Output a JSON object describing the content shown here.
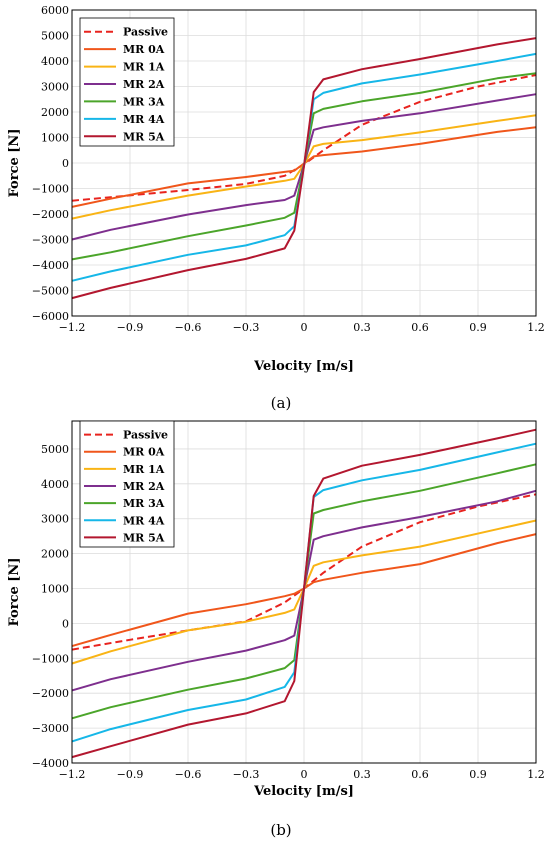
{
  "chart_data": [
    {
      "type": "line",
      "caption": "(a)",
      "xlabel": "Velocity [m/s]",
      "ylabel": "Force [N]",
      "xlim": [
        -1.2,
        1.2
      ],
      "ylim": [
        -6000,
        6000
      ],
      "xticks": [
        "−1.2",
        "−0.9",
        "−0.6",
        "−0.3",
        "0",
        "0.3",
        "0.6",
        "0.9",
        "1.2"
      ],
      "xtick_values": [
        -1.2,
        -0.9,
        -0.6,
        -0.3,
        0,
        0.3,
        0.6,
        0.9,
        1.2
      ],
      "yticks": [
        "−6000",
        "−5000",
        "−4000",
        "−3000",
        "−2000",
        "−1000",
        "0",
        "1000",
        "2000",
        "3000",
        "4000",
        "5000",
        "6000"
      ],
      "ytick_values": [
        -6000,
        -5000,
        -4000,
        -3000,
        -2000,
        -1000,
        0,
        1000,
        2000,
        3000,
        4000,
        5000,
        6000
      ],
      "grid": true,
      "legend_position": "top-left",
      "series": [
        {
          "name": "Passive",
          "color": "#e8231e",
          "dashed": true,
          "x": [
            -1.2,
            -0.9,
            -0.6,
            -0.3,
            -0.1,
            0,
            0.1,
            0.3,
            0.6,
            0.9,
            1.2
          ],
          "y": [
            -1480,
            -1270,
            -1060,
            -820,
            -500,
            -50,
            500,
            1500,
            2400,
            3000,
            3450
          ]
        },
        {
          "name": "MR 0A",
          "color": "#f0561b",
          "dashed": false,
          "x": [
            -1.2,
            -1.0,
            -0.6,
            -0.3,
            -0.1,
            -0.05,
            0,
            0.05,
            0.1,
            0.3,
            0.6,
            1.0,
            1.2
          ],
          "y": [
            -1720,
            -1400,
            -800,
            -550,
            -350,
            -300,
            -20,
            260,
            310,
            450,
            750,
            1220,
            1400
          ]
        },
        {
          "name": "MR 1A",
          "color": "#f9b415",
          "dashed": false,
          "x": [
            -1.2,
            -1.0,
            -0.6,
            -0.3,
            -0.1,
            -0.05,
            0,
            0.05,
            0.1,
            0.3,
            0.6,
            1.0,
            1.2
          ],
          "y": [
            -2180,
            -1850,
            -1280,
            -920,
            -700,
            -620,
            -60,
            650,
            750,
            900,
            1200,
            1650,
            1870
          ]
        },
        {
          "name": "MR 2A",
          "color": "#7e2f8e",
          "dashed": false,
          "x": [
            -1.2,
            -1.0,
            -0.6,
            -0.3,
            -0.1,
            -0.05,
            0,
            0.05,
            0.1,
            0.3,
            0.6,
            1.0,
            1.2
          ],
          "y": [
            -3000,
            -2620,
            -2020,
            -1650,
            -1450,
            -1280,
            -60,
            1300,
            1400,
            1650,
            1950,
            2450,
            2700
          ]
        },
        {
          "name": "MR 3A",
          "color": "#4ba52a",
          "dashed": false,
          "x": [
            -1.2,
            -1.0,
            -0.6,
            -0.3,
            -0.1,
            -0.05,
            0,
            0.05,
            0.1,
            0.3,
            0.6,
            1.0,
            1.2
          ],
          "y": [
            -3780,
            -3500,
            -2870,
            -2450,
            -2150,
            -1950,
            -80,
            1950,
            2120,
            2420,
            2750,
            3320,
            3520
          ]
        },
        {
          "name": "MR 4A",
          "color": "#16b7e8",
          "dashed": false,
          "x": [
            -1.2,
            -1.0,
            -0.6,
            -0.3,
            -0.1,
            -0.05,
            0,
            0.05,
            0.1,
            0.3,
            0.6,
            1.0,
            1.2
          ],
          "y": [
            -4620,
            -4250,
            -3600,
            -3230,
            -2830,
            -2480,
            -100,
            2500,
            2750,
            3120,
            3470,
            4000,
            4280
          ]
        },
        {
          "name": "MR 5A",
          "color": "#b3172f",
          "dashed": false,
          "x": [
            -1.2,
            -1.0,
            -0.6,
            -0.3,
            -0.1,
            -0.05,
            0,
            0.05,
            0.1,
            0.3,
            0.6,
            1.0,
            1.2
          ],
          "y": [
            -5300,
            -4900,
            -4200,
            -3760,
            -3350,
            -2650,
            -120,
            2780,
            3280,
            3680,
            4080,
            4650,
            4900
          ]
        }
      ]
    },
    {
      "type": "line",
      "caption": "(b)",
      "xlabel": "Velocity [m/s]",
      "ylabel": "Force [N]",
      "xlim": [
        -1.2,
        1.2
      ],
      "ylim": [
        -4000,
        5800
      ],
      "xticks": [
        "−1.2",
        "−0.9",
        "−0.6",
        "−0.3",
        "0",
        "0.3",
        "0.6",
        "0.9",
        "1.2"
      ],
      "xtick_values": [
        -1.2,
        -0.9,
        -0.6,
        -0.3,
        0,
        0.3,
        0.6,
        0.9,
        1.2
      ],
      "yticks": [
        "−4000",
        "−3000",
        "−2000",
        "−1000",
        "0",
        "1000",
        "2000",
        "3000",
        "4000",
        "5000"
      ],
      "ytick_values": [
        -4000,
        -3000,
        -2000,
        -1000,
        0,
        1000,
        2000,
        3000,
        4000,
        5000
      ],
      "grid": true,
      "legend_position": "top-left",
      "series": [
        {
          "name": "Passive",
          "color": "#e8231e",
          "dashed": true,
          "x": [
            -1.2,
            -0.9,
            -0.6,
            -0.3,
            -0.1,
            0,
            0.1,
            0.3,
            0.6,
            0.9,
            1.2
          ],
          "y": [
            -750,
            -470,
            -200,
            60,
            600,
            1000,
            1450,
            2200,
            2900,
            3350,
            3700
          ]
        },
        {
          "name": "MR 0A",
          "color": "#f0561b",
          "dashed": false,
          "x": [
            -1.2,
            -1.0,
            -0.6,
            -0.3,
            -0.1,
            -0.05,
            0,
            0.05,
            0.1,
            0.3,
            0.6,
            1.0,
            1.2
          ],
          "y": [
            -650,
            -330,
            280,
            550,
            780,
            850,
            1000,
            1180,
            1250,
            1450,
            1700,
            2300,
            2560
          ]
        },
        {
          "name": "MR 1A",
          "color": "#f9b415",
          "dashed": false,
          "x": [
            -1.2,
            -1.0,
            -0.6,
            -0.3,
            -0.1,
            -0.05,
            0,
            0.05,
            0.1,
            0.3,
            0.6,
            1.0,
            1.2
          ],
          "y": [
            -1150,
            -800,
            -200,
            50,
            300,
            400,
            1000,
            1650,
            1750,
            1950,
            2200,
            2700,
            2950
          ]
        },
        {
          "name": "MR 2A",
          "color": "#7e2f8e",
          "dashed": false,
          "x": [
            -1.2,
            -1.0,
            -0.6,
            -0.3,
            -0.1,
            -0.05,
            0,
            0.05,
            0.1,
            0.3,
            0.6,
            1.0,
            1.2
          ],
          "y": [
            -1920,
            -1600,
            -1100,
            -780,
            -480,
            -350,
            1000,
            2400,
            2500,
            2750,
            3050,
            3500,
            3800
          ]
        },
        {
          "name": "MR 3A",
          "color": "#4ba52a",
          "dashed": false,
          "x": [
            -1.2,
            -1.0,
            -0.6,
            -0.3,
            -0.1,
            -0.05,
            0,
            0.05,
            0.1,
            0.3,
            0.6,
            1.0,
            1.2
          ],
          "y": [
            -2720,
            -2400,
            -1900,
            -1580,
            -1280,
            -1050,
            1000,
            3150,
            3250,
            3500,
            3800,
            4300,
            4560
          ]
        },
        {
          "name": "MR 4A",
          "color": "#16b7e8",
          "dashed": false,
          "x": [
            -1.2,
            -1.0,
            -0.6,
            -0.3,
            -0.1,
            -0.05,
            0,
            0.05,
            0.1,
            0.3,
            0.6,
            1.0,
            1.2
          ],
          "y": [
            -3380,
            -3030,
            -2480,
            -2180,
            -1820,
            -1400,
            1000,
            3620,
            3820,
            4100,
            4400,
            4900,
            5150
          ]
        },
        {
          "name": "MR 5A",
          "color": "#b3172f",
          "dashed": false,
          "x": [
            -1.2,
            -1.0,
            -0.6,
            -0.3,
            -0.1,
            -0.05,
            0,
            0.05,
            0.1,
            0.3,
            0.6,
            1.0,
            1.2
          ],
          "y": [
            -3830,
            -3520,
            -2900,
            -2580,
            -2230,
            -1650,
            1000,
            3650,
            4150,
            4520,
            4830,
            5300,
            5550
          ]
        }
      ]
    }
  ]
}
